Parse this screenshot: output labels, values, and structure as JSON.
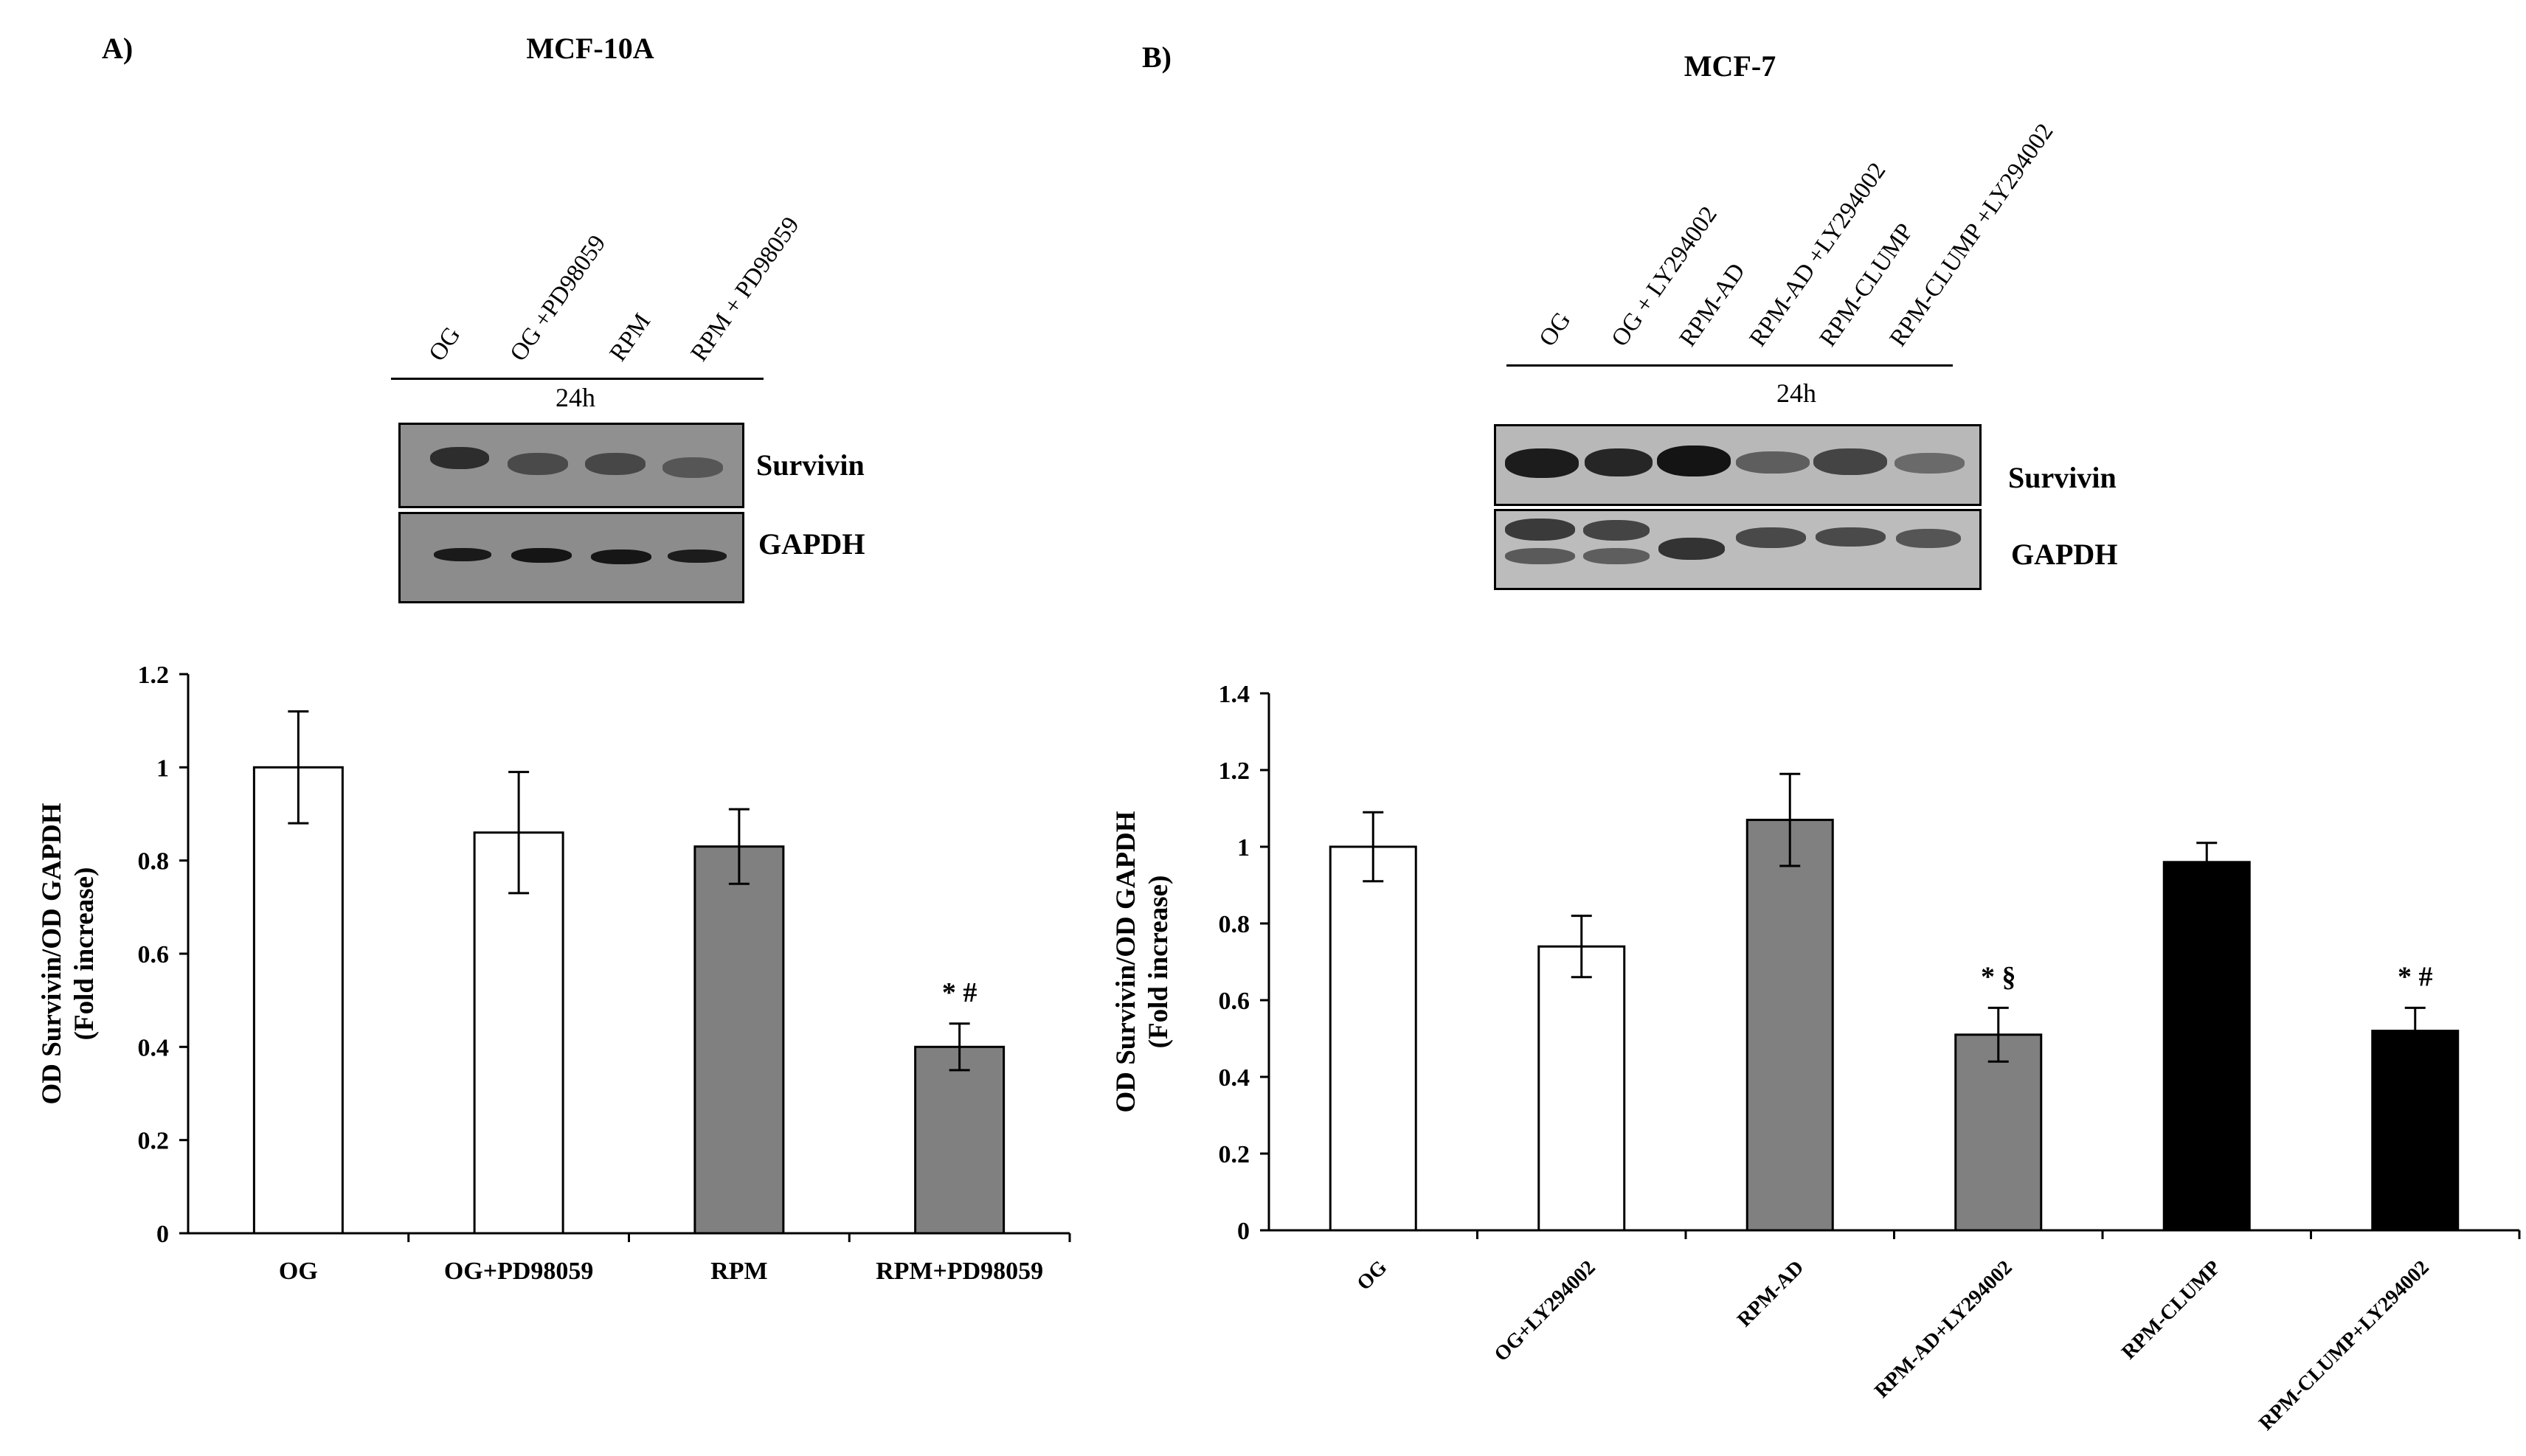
{
  "figure": {
    "panels": [
      {
        "letter": "A)",
        "cell_line": "MCF-10A",
        "lanes": [
          "OG",
          "OG +PD98059",
          "RPM",
          "RPM + PD98059"
        ],
        "time": "24h",
        "blots": [
          {
            "label": "Survivin"
          },
          {
            "label": "GAPDH"
          }
        ]
      },
      {
        "letter": "B)",
        "cell_line": "MCF-7",
        "lanes": [
          "OG",
          "OG + LY294002",
          "RPM-AD",
          "RPM-AD +LY294002",
          "RPM-CLUMP",
          "RPM-CLUMP  +LY294002"
        ],
        "time": "24h",
        "blots": [
          {
            "label": "Survivin"
          },
          {
            "label": "GAPDH"
          }
        ]
      }
    ]
  },
  "chart_data": [
    {
      "type": "bar",
      "title": "",
      "ylabel": "OD Survivin/OD GAPDH",
      "ylabel2": "(Fold increase)",
      "xlabel": "",
      "categories": [
        "OG",
        "OG+PD98059",
        "RPM",
        "RPM+PD98059"
      ],
      "values": [
        1.0,
        0.86,
        0.83,
        0.4
      ],
      "errors": [
        0.12,
        0.13,
        0.08,
        0.05
      ],
      "bar_colors": [
        "#ffffff",
        "#ffffff",
        "#808080",
        "#808080"
      ],
      "annotations": [
        "",
        "",
        "",
        "* #"
      ],
      "ylim": [
        0,
        1.2
      ],
      "yticks": [
        "0",
        "0.2",
        "0.4",
        "0.6",
        "0.8",
        "1",
        "1.2"
      ],
      "grid": false,
      "x_label_rotation": 0
    },
    {
      "type": "bar",
      "title": "",
      "ylabel": "OD Survivin/OD GAPDH",
      "ylabel2": "(Fold increase)",
      "xlabel": "",
      "categories": [
        "OG",
        "OG+LY294002",
        "RPM-AD",
        "RPM-AD+LY294002",
        "RPM-CLUMP",
        "RPM-CLUMP+LY294002"
      ],
      "values": [
        1.0,
        0.74,
        1.07,
        0.51,
        0.96,
        0.52
      ],
      "errors": [
        0.09,
        0.08,
        0.12,
        0.07,
        0.05,
        0.06
      ],
      "bar_colors": [
        "#ffffff",
        "#ffffff",
        "#808080",
        "#808080",
        "#000000",
        "#000000"
      ],
      "annotations": [
        "",
        "",
        "",
        "* §",
        "",
        "* #"
      ],
      "ylim": [
        0,
        1.4
      ],
      "yticks": [
        "0",
        "0.2",
        "0.4",
        "0.6",
        "0.8",
        "1",
        "1.2",
        "1.4"
      ],
      "grid": false,
      "x_label_rotation": -45
    }
  ]
}
